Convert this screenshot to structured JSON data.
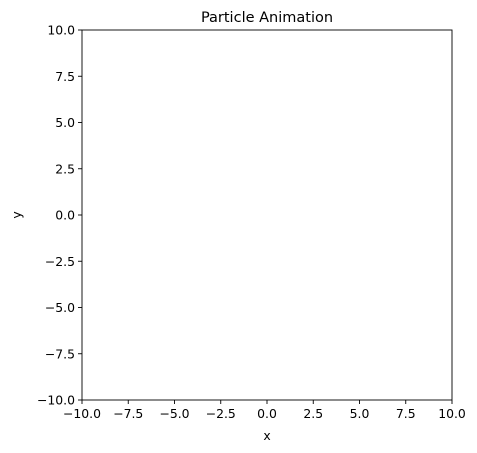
{
  "chart_data": {
    "type": "scatter",
    "title": "Particle Animation",
    "xlabel": "x",
    "ylabel": "y",
    "xlim": [
      -10.0,
      10.0
    ],
    "ylim": [
      -10.0,
      10.0
    ],
    "x_ticks": [
      -10.0,
      -7.5,
      -5.0,
      -2.5,
      0.0,
      2.5,
      5.0,
      7.5,
      10.0
    ],
    "x_tick_labels": [
      "−10.0",
      "−7.5",
      "−5.0",
      "−2.5",
      "0.0",
      "2.5",
      "5.0",
      "7.5",
      "10.0"
    ],
    "y_ticks": [
      10.0,
      7.5,
      5.0,
      2.5,
      0.0,
      -2.5,
      -5.0,
      -7.5,
      -10.0
    ],
    "y_tick_labels": [
      "10.0",
      "7.5",
      "5.0",
      "2.5",
      "0.0",
      "−2.5",
      "−5.0",
      "−7.5",
      "−10.0"
    ],
    "grid": false,
    "series": [
      {
        "x": [],
        "y": []
      }
    ]
  }
}
